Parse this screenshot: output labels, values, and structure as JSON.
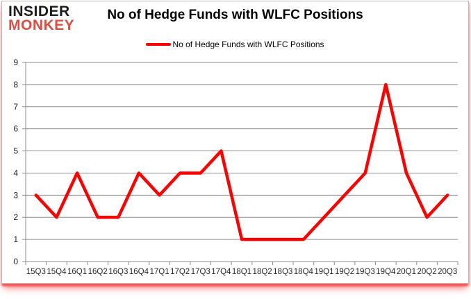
{
  "brand": {
    "line1": "INSIDER",
    "line2": "MONKEY"
  },
  "header": {
    "title": "No of Hedge Funds with WLFC Positions"
  },
  "legend": {
    "label": "No of Hedge Funds with WLFC Positions"
  },
  "colors": {
    "series_line": "#ff0000",
    "brand_black": "#1d1d1b",
    "brand_red": "#d94f43",
    "gridline": "#8c8c8c",
    "axis": "#8c8c8c",
    "tick_label": "#262626"
  },
  "chart_data": {
    "type": "line",
    "title": "No of Hedge Funds with WLFC Positions",
    "categories": [
      "15Q3",
      "15Q4",
      "16Q1",
      "16Q2",
      "16Q3",
      "16Q4",
      "17Q1",
      "17Q2",
      "17Q3",
      "17Q4",
      "18Q1",
      "18Q2",
      "18Q3",
      "18Q4",
      "19Q1",
      "19Q2",
      "19Q3",
      "19Q4",
      "20Q1",
      "20Q2",
      "20Q3"
    ],
    "series": [
      {
        "name": "No of Hedge Funds with WLFC Positions",
        "color": "#ff0000",
        "values": [
          3,
          2,
          4,
          2,
          2,
          4,
          3,
          4,
          4,
          5,
          1,
          1,
          1,
          1,
          2,
          3,
          4,
          8,
          4,
          2,
          3
        ]
      }
    ],
    "xlabel": "",
    "ylabel": "",
    "ylim": [
      0,
      9
    ],
    "ytick_interval": 1,
    "grid": "horizontal",
    "legend_position": "top-center"
  }
}
